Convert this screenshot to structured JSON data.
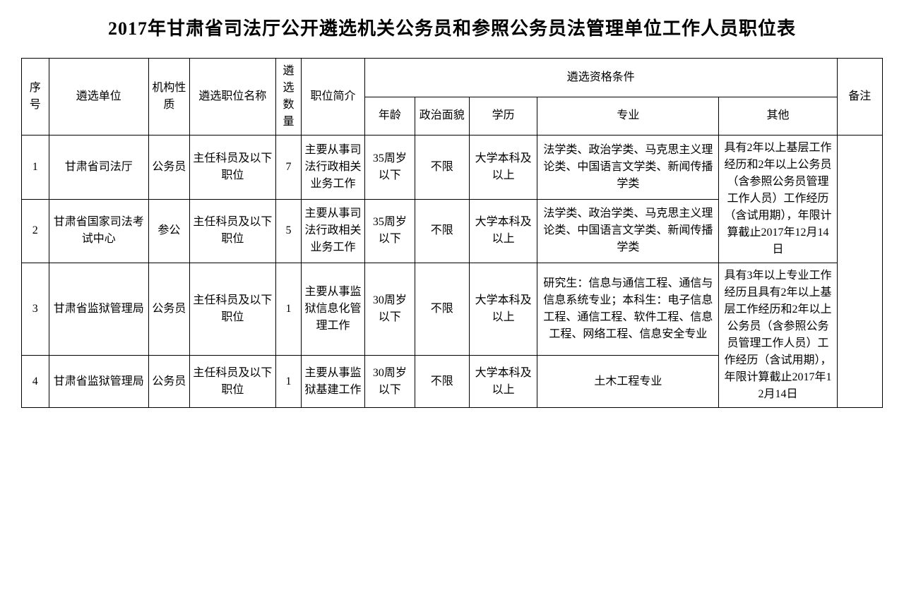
{
  "title": "2017年甘肃省司法厅公开遴选机关公务员和参照公务员法管理单位工作人员职位表",
  "headers": {
    "seq": "序号",
    "unit": "遴选单位",
    "nature": "机构性质",
    "posName": "遴选职位名称",
    "qty": "遴选数量",
    "intro": "职位简介",
    "qualGroup": "遴选资格条件",
    "age": "年龄",
    "political": "政治面貌",
    "edu": "学历",
    "major": "专业",
    "other": "其他",
    "remark": "备注"
  },
  "rows": [
    {
      "seq": "1",
      "unit": "甘肃省司法厅",
      "nature": "公务员",
      "posName": "主任科员及以下职位",
      "qty": "7",
      "intro": "主要从事司法行政相关业务工作",
      "age": "35周岁以下",
      "political": "不限",
      "edu": "大学本科及以上",
      "major": "法学类、政治学类、马克思主义理论类、中国语言文学类、新闻传播学类"
    },
    {
      "seq": "2",
      "unit": "甘肃省国家司法考试中心",
      "nature": "参公",
      "posName": "主任科员及以下职位",
      "qty": "5",
      "intro": "主要从事司法行政相关业务工作",
      "age": "35周岁以下",
      "political": "不限",
      "edu": "大学本科及以上",
      "major": "法学类、政治学类、马克思主义理论类、中国语言文学类、新闻传播学类"
    },
    {
      "seq": "3",
      "unit": "甘肃省监狱管理局",
      "nature": "公务员",
      "posName": "主任科员及以下职位",
      "qty": "1",
      "intro": "主要从事监狱信息化管理工作",
      "age": "30周岁以下",
      "political": "不限",
      "edu": "大学本科及以上",
      "major": "研究生：信息与通信工程、通信与信息系统专业；本科生：电子信息工程、通信工程、软件工程、信息工程、网络工程、信息安全专业"
    },
    {
      "seq": "4",
      "unit": "甘肃省监狱管理局",
      "nature": "公务员",
      "posName": "主任科员及以下职位",
      "qty": "1",
      "intro": "主要从事监狱基建工作",
      "age": "30周岁以下",
      "political": "不限",
      "edu": "大学本科及以上",
      "major": "土木工程专业"
    }
  ],
  "otherMerged": {
    "group1": "具有2年以上基层工作经历和2年以上公务员（含参照公务员管理工作人员）工作经历（含试用期），年限计算截止2017年12月14日",
    "group2": "具有3年以上专业工作经历且具有2年以上基层工作经历和2年以上公务员（含参照公务员管理工作人员）工作经历（含试用期），年限计算截止2017年12月14日"
  },
  "remarkMerged": ""
}
